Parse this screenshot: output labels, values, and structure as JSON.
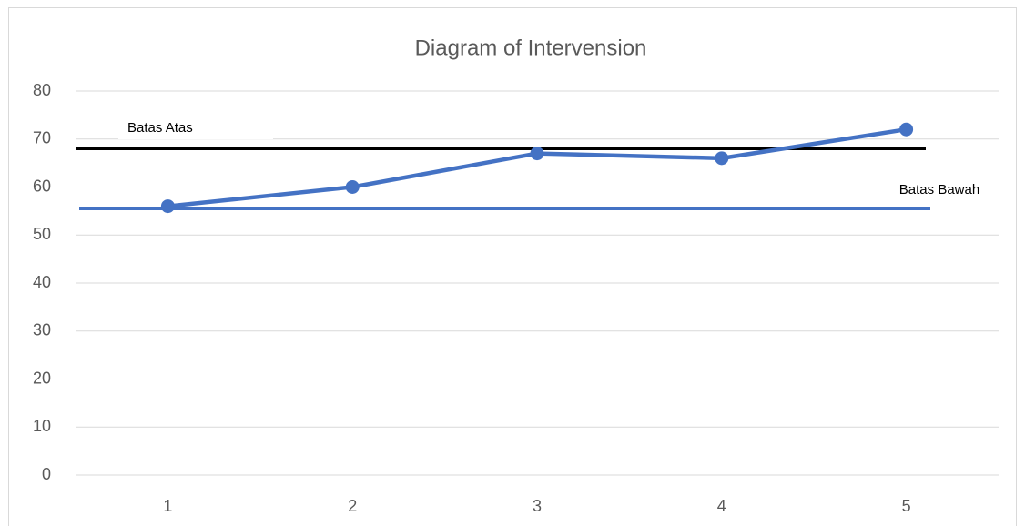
{
  "chart_data": {
    "type": "line",
    "title": "Diagram of Intervension",
    "categories": [
      "1",
      "2",
      "3",
      "4",
      "5"
    ],
    "series": [
      {
        "name": "Intervension",
        "color": "#4472c4",
        "values": [
          56,
          60,
          67,
          66,
          72
        ]
      }
    ],
    "ylim": [
      0,
      80
    ],
    "yticks": [
      0,
      10,
      20,
      30,
      40,
      50,
      60,
      70,
      80
    ],
    "grid": true,
    "reference_lines": [
      {
        "label": "Batas Atas",
        "value": 68,
        "color": "#000000"
      },
      {
        "label": "Batas Bawah",
        "value": 55.5,
        "color": "#4472c4"
      }
    ]
  }
}
